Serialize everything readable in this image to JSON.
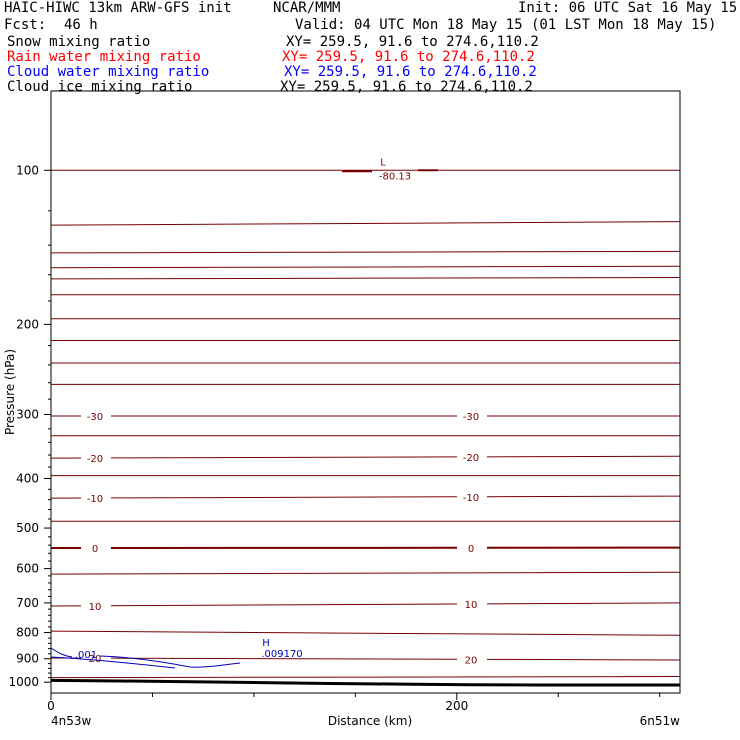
{
  "header": {
    "model": "HAIC-HIWC 13km ARW-GFS init",
    "org": "NCAR/MMM",
    "init": "Init: 06 UTC Sat 16 May 15",
    "fcst_label": "Fcst:",
    "fcst_value": "46 h",
    "valid": "Valid: 04 UTC Mon 18 May 15 (01 LST Mon 18 May 15)"
  },
  "fields": [
    {
      "name": "Snow mixing ratio",
      "xy": "XY= 259.5, 91.6 to 274.6,110.2",
      "color": "#000000"
    },
    {
      "name": "Rain water mixing ratio",
      "xy": "XY= 259.5, 91.6 to 274.6,110.2",
      "color": "#ff0000"
    },
    {
      "name": "Cloud water mixing ratio",
      "xy": "XY= 259.5, 91.6 to 274.6,110.2",
      "color": "#0000ff"
    },
    {
      "name": "Cloud ice mixing ratio",
      "xy": "XY= 259.5, 91.6 to 274.6,110.2",
      "color": "#000000"
    }
  ],
  "chart_data": {
    "type": "line",
    "xlabel": "Distance (km)",
    "ylabel": "Pressure (hPa)",
    "x_ticks": [
      0,
      200
    ],
    "xlim": [
      0,
      310
    ],
    "y_ticks": [
      100,
      200,
      300,
      400,
      500,
      600,
      700,
      800,
      900,
      1000
    ],
    "ylim": [
      70,
      1050
    ],
    "y_scale": "log",
    "endpoints": {
      "left": "4n53w",
      "right": "6n51w"
    },
    "contour_color": "#7a0000",
    "cloud_color": "#0000bb",
    "isotherms": [
      {
        "p": [
          100,
          100
        ],
        "label": "-80.13"
      },
      {
        "p": [
          128,
          126
        ]
      },
      {
        "p": [
          145,
          144
        ]
      },
      {
        "p": [
          155,
          154
        ]
      },
      {
        "p": [
          163,
          162
        ]
      },
      {
        "p": [
          175,
          175
        ]
      },
      {
        "p": [
          195,
          195
        ]
      },
      {
        "p": [
          215,
          215
        ]
      },
      {
        "p": [
          238,
          238
        ]
      },
      {
        "p": [
          262,
          262
        ]
      },
      {
        "p": [
          302,
          302
        ],
        "label": "-30"
      },
      {
        "p": [
          330,
          330
        ]
      },
      {
        "p": [
          365,
          362
        ],
        "label": "-20"
      },
      {
        "p": [
          395,
          395
        ]
      },
      {
        "p": [
          437,
          433
        ],
        "label": "-10"
      },
      {
        "p": [
          485,
          485
        ]
      },
      {
        "p": [
          547,
          546
        ],
        "label": "0"
      },
      {
        "p": [
          615,
          610
        ]
      },
      {
        "p": [
          710,
          700
        ],
        "label": "10"
      },
      {
        "p": [
          795,
          810
        ]
      },
      {
        "p": [
          897,
          905
        ],
        "label": "20"
      },
      {
        "p": [
          980,
          975
        ]
      }
    ],
    "low_center": {
      "symbol": "L",
      "value": "-80.13"
    },
    "high_center": {
      "symbol": "H",
      "value": ".009170"
    },
    "cloud_contour_label": ".001",
    "terrain_p": [
      992,
      995,
      998,
      1002,
      1006,
      1009,
      1012,
      1013,
      1013,
      1013
    ]
  }
}
